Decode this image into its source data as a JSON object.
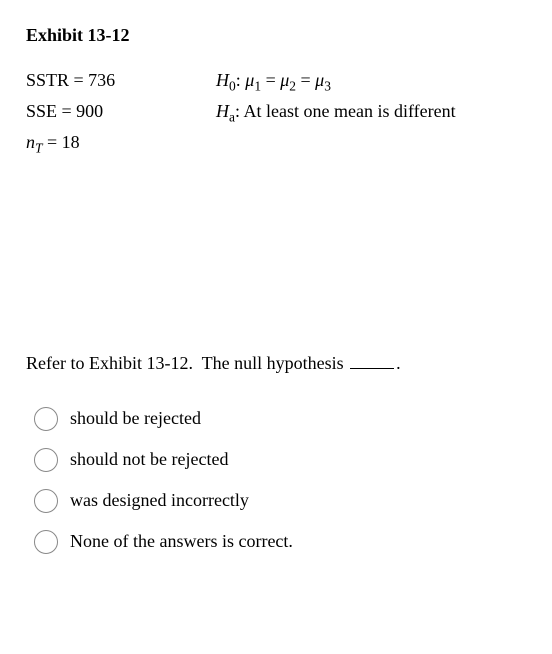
{
  "exhibit": {
    "title": "Exhibit 13-12",
    "rows": [
      {
        "left_html": "SSTR = 736",
        "right_html": "<span class='ital'>H</span><sub>0</sub>: <span class='ital'>&mu;</span><sub>1</sub> = <span class='ital'>&mu;</span><sub>2</sub> = <span class='ital'>&mu;</span><sub>3</sub>"
      },
      {
        "left_html": "SSE = 900",
        "right_html": "<span class='ital'>H</span><sub>a</sub>: At least one mean is different"
      },
      {
        "left_html": "<span class='ital'>n<sub>T</sub></span> = 18",
        "right_html": ""
      }
    ]
  },
  "question": {
    "prefix": "Refer to Exhibit 13-12.  The null hypothesis ",
    "suffix": "."
  },
  "options": [
    "should be rejected",
    "should not be rejected",
    "was designed incorrectly",
    "None of the answers is correct."
  ]
}
